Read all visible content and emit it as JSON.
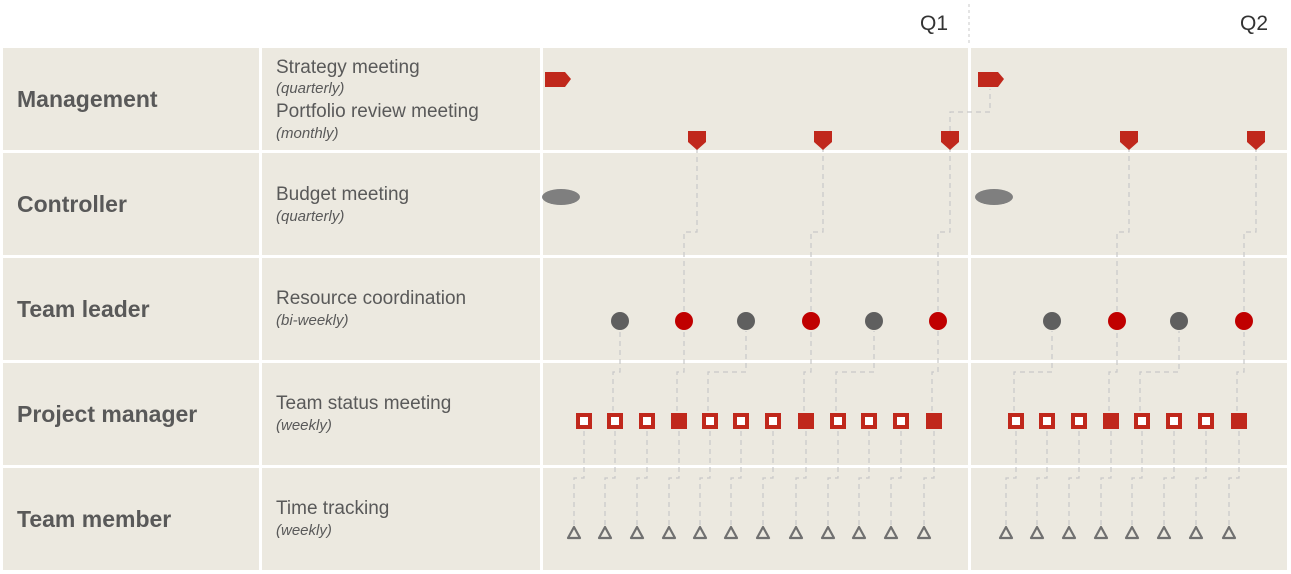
{
  "quarters": [
    "Q1",
    "Q2"
  ],
  "colors": {
    "background": "#ece9e0",
    "red": "#c0281c",
    "dark_red": "#c00000",
    "gray": "#5f5f5f",
    "ellipse_gray": "#7f7f7f",
    "triangle_gray": "#707070",
    "connector": "#c8c8c8"
  },
  "rows": [
    {
      "role": "Management",
      "activities": [
        {
          "name": "Strategy meeting",
          "frequency": "(quarterly)"
        },
        {
          "name": "Portfolio review meeting",
          "frequency": "(monthly)"
        }
      ]
    },
    {
      "role": "Controller",
      "activities": [
        {
          "name": "Budget meeting",
          "frequency": "(quarterly)"
        }
      ]
    },
    {
      "role": "Team leader",
      "activities": [
        {
          "name": "Resource coordination",
          "frequency": "(bi-weekly)"
        }
      ]
    },
    {
      "role": "Project manager",
      "activities": [
        {
          "name": "Team status meeting",
          "frequency": "(weekly)"
        }
      ]
    },
    {
      "role": "Team member",
      "activities": [
        {
          "name": "Time tracking",
          "frequency": "(weekly)"
        }
      ]
    }
  ],
  "markers": {
    "strategy": {
      "shape": "flag-icon",
      "color": "red",
      "count": 2
    },
    "portfolio_review": {
      "shape": "pennant-icon",
      "color": "red",
      "count": 5
    },
    "budget": {
      "shape": "ellipse-icon",
      "color": "ellipse_gray",
      "count": 2
    },
    "resource_coordination": {
      "shape": "circle-icon",
      "colors": [
        "gray",
        "red",
        "gray",
        "red",
        "gray",
        "red",
        "gray",
        "red",
        "gray",
        "red"
      ]
    },
    "team_status": {
      "shape": "square-icon",
      "pattern": [
        "hollow",
        "hollow",
        "hollow",
        "filled",
        "hollow",
        "hollow",
        "hollow",
        "filled",
        "hollow",
        "hollow",
        "hollow",
        "filled",
        "hollow",
        "hollow",
        "hollow",
        "filled",
        "hollow",
        "hollow",
        "hollow",
        "filled"
      ]
    },
    "time_tracking": {
      "shape": "triangle-icon",
      "color": "triangle_gray",
      "count": 20
    }
  }
}
